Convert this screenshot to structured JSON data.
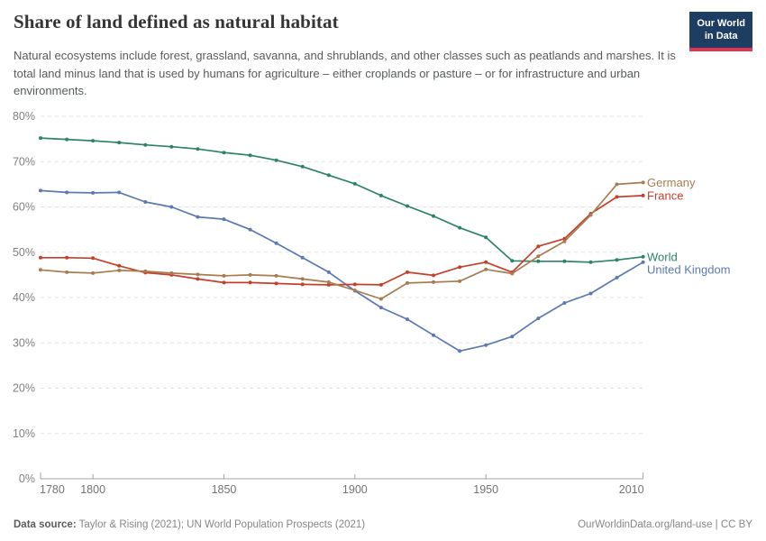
{
  "header": {
    "title": "Share of land defined as natural habitat",
    "subtitle": "Natural ecosystems include forest, grassland, savanna, and shrublands, and other classes such as peatlands and marshes. It is total land minus land that is used by humans for agriculture – either croplands or pasture – or for infrastructure and urban environments.",
    "logo": {
      "line1": "Our World",
      "line2": "in Data",
      "bg_color": "#1d3d63",
      "accent_color": "#e0354f"
    }
  },
  "footer": {
    "source_label": "Data source:",
    "source_text": " Taylor & Rising (2021); UN World Population Prospects (2021)",
    "right_text": "OurWorldinData.org/land-use | CC BY"
  },
  "chart_data": {
    "type": "line",
    "title": "Share of land defined as natural habitat",
    "xlabel": "",
    "ylabel": "",
    "xlim": [
      1780,
      2010
    ],
    "ylim": [
      0,
      80
    ],
    "grid": "horizontal-dashed",
    "legend_position": "right-of-line-ends",
    "xticks": [
      1780,
      1800,
      1850,
      1900,
      1950,
      2010
    ],
    "yticks": [
      0,
      10,
      20,
      30,
      40,
      50,
      60,
      70,
      80
    ],
    "ytick_suffix": "%",
    "x": [
      1780,
      1790,
      1800,
      1810,
      1820,
      1830,
      1840,
      1850,
      1860,
      1870,
      1880,
      1890,
      1900,
      1910,
      1920,
      1930,
      1940,
      1950,
      1960,
      1970,
      1980,
      1990,
      2000,
      2010
    ],
    "series": [
      {
        "name": "World",
        "color": "#2C8465",
        "values": [
          75.2,
          74.9,
          74.6,
          74.2,
          73.7,
          73.3,
          72.8,
          72.0,
          71.4,
          70.3,
          68.9,
          67.0,
          65.1,
          62.5,
          60.2,
          58.0,
          55.4,
          53.3,
          48.1,
          48.0,
          48.0,
          47.8,
          48.3,
          49.0
        ]
      },
      {
        "name": "United Kingdom",
        "color": "#5B79B3",
        "values": [
          63.6,
          63.2,
          63.1,
          63.2,
          61.1,
          60.0,
          57.8,
          57.3,
          55.0,
          52.0,
          48.8,
          45.6,
          41.5,
          37.8,
          35.2,
          31.7,
          28.2,
          29.5,
          31.4,
          35.4,
          38.8,
          40.9,
          44.4,
          47.8
        ]
      },
      {
        "name": "France",
        "color": "#C4402A",
        "values": [
          48.8,
          48.8,
          48.7,
          47.0,
          45.5,
          45.0,
          44.1,
          43.3,
          43.3,
          43.1,
          42.9,
          42.8,
          42.9,
          42.8,
          45.6,
          44.9,
          46.7,
          47.8,
          45.6,
          51.3,
          53.0,
          58.5,
          62.2,
          62.5
        ]
      },
      {
        "name": "Germany",
        "color": "#A87C50",
        "values": [
          46.1,
          45.6,
          45.4,
          46.0,
          45.8,
          45.4,
          45.1,
          44.8,
          45.0,
          44.8,
          44.1,
          43.4,
          41.6,
          39.7,
          43.2,
          43.4,
          43.6,
          46.2,
          45.3,
          49.1,
          52.4,
          58.2,
          65.0,
          65.4
        ]
      }
    ]
  }
}
